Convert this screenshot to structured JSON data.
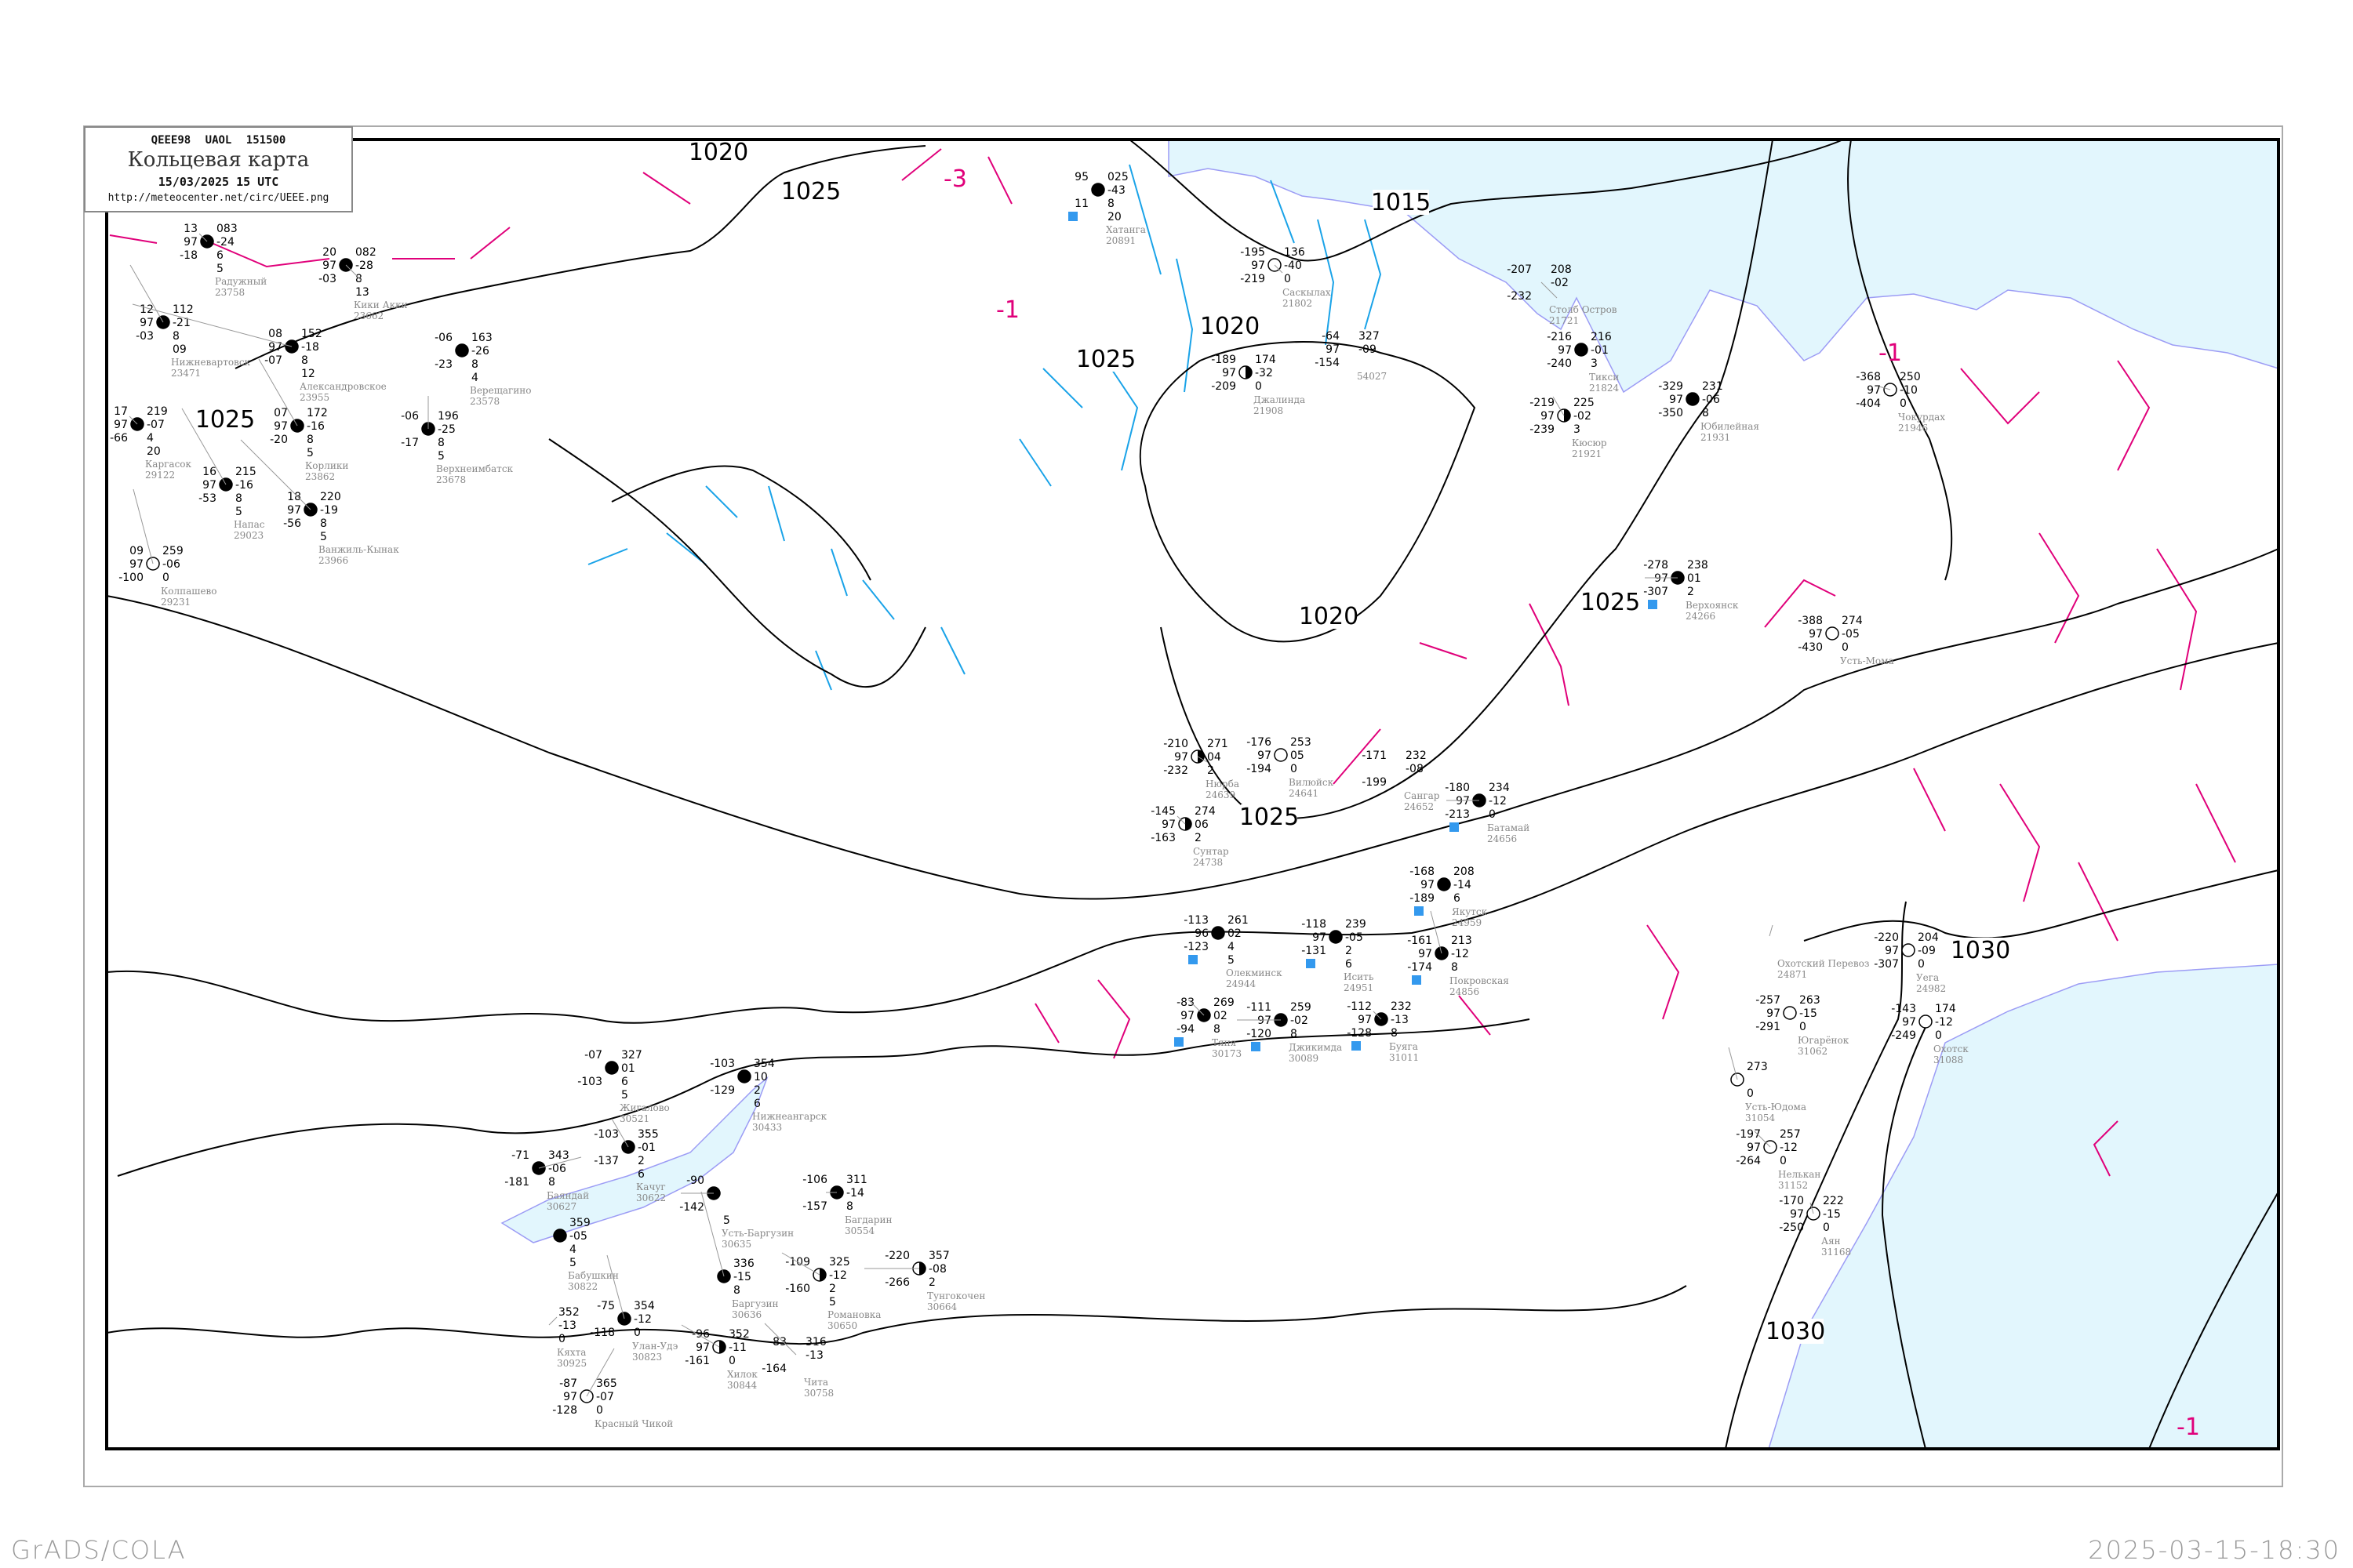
{
  "header": {
    "code_line": "QEEE98  UAOL  151500",
    "title": "Кольцевая карта",
    "datetime": "15/03/2025 15 UTC",
    "url": "http://meteocenter.net/circ/UEEE.png"
  },
  "footer": {
    "left": "GrADS/COLA",
    "right": "2025-03-15-18:30"
  },
  "colors": {
    "isobar": "#000000",
    "isotherm": "#e0007a",
    "cold_isotherm": "#1aa3e8",
    "water": "#e2f6fd",
    "coastline": "#9c9cf5",
    "precip_marker": "#3399ee",
    "station_name": "#888888"
  },
  "isobar_labels": [
    "1020",
    "1025",
    "1015",
    "1020",
    "1025",
    "1025",
    "1020",
    "1025",
    "1025",
    "1030",
    "1030"
  ],
  "isotherm_labels": [
    "-3",
    "-1",
    "-1",
    "-1"
  ],
  "stations": [
    {
      "name": "Хатанга",
      "id": "20891",
      "tl": "95",
      "ml": "",
      "bl": "11",
      "tr": "025",
      "mr": "-43",
      "br": "8",
      "bb": "20",
      "cover": "full",
      "precip": true
    },
    {
      "name": "Саскылах",
      "id": "21802",
      "tl": "-195",
      "ml": "97",
      "bl": "-219",
      "tr": "136",
      "mr": "-40",
      "br": "0",
      "bb": "",
      "cover": "empty",
      "precip": false
    },
    {
      "name": "Джалинда",
      "id": "21908",
      "tl": "-189",
      "ml": "97",
      "bl": "-209",
      "tr": "174",
      "mr": "-32",
      "br": "0",
      "bb": "",
      "cover": "half",
      "precip": false
    },
    {
      "name": "",
      "id": "54027",
      "tl": "-64",
      "ml": "97",
      "bl": "-154",
      "tr": "327",
      "mr": "-09",
      "br": "",
      "bb": "",
      "cover": "none",
      "precip": false
    },
    {
      "name": "Радужный",
      "id": "23758",
      "tl": "13",
      "ml": "97",
      "bl": "-18",
      "tr": "083",
      "mr": "-24",
      "br": "6",
      "bb": "5",
      "cover": "full",
      "precip": false
    },
    {
      "name": "Нижневартовск",
      "id": "23471",
      "tl": "12",
      "ml": "97",
      "bl": "-03",
      "tr": "112",
      "mr": "-21",
      "br": "8",
      "bb": "09",
      "cover": "full",
      "precip": false
    },
    {
      "name": "Александровское",
      "id": "23955",
      "tl": "08",
      "ml": "97",
      "bl": "-07",
      "tr": "152",
      "mr": "-18",
      "br": "8",
      "bb": "12",
      "cover": "full",
      "precip": false
    },
    {
      "name": "Корлики",
      "id": "23862",
      "tl": "07",
      "ml": "97",
      "bl": "-20",
      "tr": "172",
      "mr": "-16",
      "br": "8",
      "bb": "5",
      "cover": "full",
      "precip": false
    },
    {
      "name": "Каргасок",
      "id": "29122",
      "tl": "17",
      "ml": "97",
      "bl": "-66",
      "tr": "219",
      "mr": "-07",
      "br": "4",
      "bb": "20",
      "cover": "full",
      "precip": false
    },
    {
      "name": "Напас",
      "id": "29023",
      "tl": "16",
      "ml": "97",
      "bl": "-53",
      "tr": "215",
      "mr": "-16",
      "br": "8",
      "bb": "5",
      "cover": "full",
      "precip": false
    },
    {
      "name": "Ванжиль-Кынак",
      "id": "23966",
      "tl": "18",
      "ml": "97",
      "bl": "-56",
      "tr": "220",
      "mr": "-19",
      "br": "8",
      "bb": "5",
      "cover": "full",
      "precip": false
    },
    {
      "name": "Колпашево",
      "id": "29231",
      "tl": "09",
      "ml": "97",
      "bl": "-100",
      "tr": "259",
      "mr": "-06",
      "br": "0",
      "bb": "",
      "cover": "empty",
      "precip": false
    },
    {
      "name": "Кики Акки",
      "id": "23662",
      "tl": "20",
      "ml": "97",
      "bl": "-03",
      "tr": "082",
      "mr": "-28",
      "br": "8",
      "bb": "13",
      "cover": "full",
      "precip": false
    },
    {
      "name": "Верещагино",
      "id": "23578",
      "tl": "-06",
      "ml": "",
      "bl": "-23",
      "tr": "163",
      "mr": "-26",
      "br": "8",
      "bb": "4",
      "cover": "full",
      "precip": false
    },
    {
      "name": "Верхнеимбатск",
      "id": "23678",
      "tl": "-06",
      "ml": "",
      "bl": "-17",
      "tr": "196",
      "mr": "-25",
      "br": "8",
      "bb": "5",
      "cover": "full",
      "precip": false
    },
    {
      "name": "Тикси",
      "id": "21824",
      "tl": "-216",
      "ml": "97",
      "bl": "-240",
      "tr": "216",
      "mr": "-01",
      "br": "3",
      "bb": "",
      "cover": "full",
      "precip": false
    },
    {
      "name": "Кюсюр",
      "id": "21921",
      "tl": "-219",
      "ml": "97",
      "bl": "-239",
      "tr": "225",
      "mr": "-02",
      "br": "3",
      "bb": "",
      "cover": "half",
      "precip": false
    },
    {
      "name": "Юбилейная",
      "id": "21931",
      "tl": "-329",
      "ml": "97",
      "bl": "-350",
      "tr": "231",
      "mr": "-06",
      "br": "8",
      "bb": "",
      "cover": "full",
      "precip": false
    },
    {
      "name": "Чокурдах",
      "id": "21946",
      "tl": "-368",
      "ml": "97",
      "bl": "-404",
      "tr": "250",
      "mr": "-10",
      "br": "0",
      "bb": "",
      "cover": "empty",
      "precip": false
    },
    {
      "name": "Верхоянск",
      "id": "24266",
      "tl": "-278",
      "ml": "97",
      "bl": "-307",
      "tr": "238",
      "mr": "01",
      "br": "2",
      "bb": "",
      "cover": "full",
      "precip": true
    },
    {
      "name": "Усть-Мома",
      "id": "",
      "tl": "-388",
      "ml": "97",
      "bl": "-430",
      "tr": "274",
      "mr": "-05",
      "br": "0",
      "bb": "",
      "cover": "empty",
      "precip": false
    },
    {
      "name": "Столб Остров",
      "id": "21721",
      "tl": "-207",
      "ml": "",
      "bl": "-232",
      "tr": "208",
      "mr": "-02",
      "br": "",
      "bb": "",
      "cover": "none",
      "precip": false
    },
    {
      "name": "Нюрба",
      "id": "24639",
      "tl": "-210",
      "ml": "97",
      "bl": "-232",
      "tr": "271",
      "mr": "04",
      "br": "2",
      "bb": "",
      "cover": "half",
      "precip": false
    },
    {
      "name": "Вилюйск",
      "id": "24641",
      "tl": "-176",
      "ml": "97",
      "bl": "-194",
      "tr": "253",
      "mr": "05",
      "br": "0",
      "bb": "",
      "cover": "empty",
      "precip": false
    },
    {
      "name": "Сунтар",
      "id": "24738",
      "tl": "-145",
      "ml": "97",
      "bl": "-163",
      "tr": "274",
      "mr": "06",
      "br": "2",
      "bb": "",
      "cover": "half",
      "precip": false
    },
    {
      "name": "Сангар",
      "id": "24652",
      "tl": "-171",
      "ml": "",
      "bl": "-199",
      "tr": "232",
      "mr": "-08",
      "br": "",
      "bb": "",
      "cover": "none",
      "precip": false
    },
    {
      "name": "Батамай",
      "id": "24656",
      "tl": "-180",
      "ml": "97",
      "bl": "-213",
      "tr": "234",
      "mr": "-12",
      "br": "0",
      "bb": "",
      "cover": "full",
      "precip": true
    },
    {
      "name": "Якутск",
      "id": "24959",
      "tl": "-168",
      "ml": "97",
      "bl": "-189",
      "tr": "208",
      "mr": "-14",
      "br": "6",
      "bb": "",
      "cover": "full",
      "precip": true
    },
    {
      "name": "Покровская",
      "id": "24856",
      "tl": "-161",
      "ml": "97",
      "bl": "-174",
      "tr": "213",
      "mr": "-12",
      "br": "8",
      "bb": "",
      "cover": "full",
      "precip": true
    },
    {
      "name": "Олекминск",
      "id": "24944",
      "tl": "-113",
      "ml": "96",
      "bl": "-123",
      "tr": "261",
      "mr": "02",
      "br": "4",
      "bb": "5",
      "cover": "full",
      "precip": true
    },
    {
      "name": "Исить",
      "id": "24951",
      "tl": "-118",
      "ml": "97",
      "bl": "-131",
      "tr": "239",
      "mr": "-05",
      "br": "2",
      "bb": "6",
      "cover": "full",
      "precip": true
    },
    {
      "name": "Тяня",
      "id": "30173",
      "tl": "-83",
      "ml": "97",
      "bl": "-94",
      "tr": "269",
      "mr": "02",
      "br": "8",
      "bb": "",
      "cover": "full",
      "precip": true
    },
    {
      "name": "Джикимда",
      "id": "30089",
      "tl": "-111",
      "ml": "97",
      "bl": "-120",
      "tr": "259",
      "mr": "-02",
      "br": "8",
      "bb": "",
      "cover": "full",
      "precip": true
    },
    {
      "name": "Буяга",
      "id": "31011",
      "tl": "-112",
      "ml": "97",
      "bl": "-128",
      "tr": "232",
      "mr": "-13",
      "br": "8",
      "bb": "",
      "cover": "full",
      "precip": true
    },
    {
      "name": "Жигалово",
      "id": "30521",
      "tl": "-07",
      "ml": "",
      "bl": "-103",
      "tr": "327",
      "mr": "01",
      "br": "6",
      "bb": "5",
      "cover": "full",
      "precip": false
    },
    {
      "name": "Нижнеангарск",
      "id": "30433",
      "tl": "-103",
      "ml": "",
      "bl": "-129",
      "tr": "354",
      "mr": "10",
      "br": "2",
      "bb": "6",
      "cover": "full",
      "precip": false
    },
    {
      "name": "Качуг",
      "id": "30622",
      "tl": "-103",
      "ml": "",
      "bl": "-137",
      "tr": "355",
      "mr": "-01",
      "br": "2",
      "bb": "6",
      "cover": "full",
      "precip": false
    },
    {
      "name": "Баяндай",
      "id": "30627",
      "tl": "-71",
      "ml": "",
      "bl": "-181",
      "tr": "343",
      "mr": "-06",
      "br": "8",
      "bb": "",
      "cover": "full",
      "precip": false
    },
    {
      "name": "Усть-Баргузин",
      "id": "30635",
      "tl": "-90",
      "ml": "",
      "bl": "-142",
      "tr": "",
      "mr": "",
      "br": "",
      "bb": "5",
      "cover": "full",
      "precip": false
    },
    {
      "name": "Баргузин",
      "id": "30636",
      "tl": "",
      "ml": "",
      "bl": "",
      "tr": "336",
      "mr": "-15",
      "br": "8",
      "bb": "",
      "cover": "full",
      "precip": false
    },
    {
      "name": "Багдарин",
      "id": "30554",
      "tl": "-106",
      "ml": "",
      "bl": "-157",
      "tr": "311",
      "mr": "-14",
      "br": "8",
      "bb": "",
      "cover": "full",
      "precip": false
    },
    {
      "name": "Бабушкин",
      "id": "30822",
      "tl": "",
      "ml": "",
      "bl": "",
      "tr": "359",
      "mr": "-05",
      "br": "4",
      "bb": "5",
      "cover": "full",
      "precip": false
    },
    {
      "name": "Улан-Удэ",
      "id": "30823",
      "tl": "-75",
      "ml": "",
      "bl": "-118",
      "tr": "354",
      "mr": "-12",
      "br": "0",
      "bb": "",
      "cover": "full",
      "precip": false
    },
    {
      "name": "Романовка",
      "id": "30650",
      "tl": "-109",
      "ml": "",
      "bl": "-160",
      "tr": "325",
      "mr": "-12",
      "br": "2",
      "bb": "5",
      "cover": "half",
      "precip": false
    },
    {
      "name": "Тунгокочен",
      "id": "30664",
      "tl": "-220",
      "ml": "",
      "bl": "-266",
      "tr": "357",
      "mr": "-08",
      "br": "2",
      "bb": "",
      "cover": "half",
      "precip": false
    },
    {
      "name": "Хилок",
      "id": "30844",
      "tl": "-96",
      "ml": "97",
      "bl": "-161",
      "tr": "352",
      "mr": "-11",
      "br": "0",
      "bb": "",
      "cover": "half",
      "precip": false
    },
    {
      "name": "Чита",
      "id": "30758",
      "tl": "-83",
      "ml": "",
      "bl": "-164",
      "tr": "316",
      "mr": "-13",
      "br": "",
      "bb": "",
      "cover": "none",
      "precip": false
    },
    {
      "name": "Кяхта",
      "id": "30925",
      "tl": "",
      "ml": "",
      "bl": "",
      "tr": "352",
      "mr": "-13",
      "br": "0",
      "bb": "",
      "cover": "none",
      "precip": false
    },
    {
      "name": "Красный Чикой",
      "id": "",
      "tl": "-87",
      "ml": "97",
      "bl": "-128",
      "tr": "365",
      "mr": "-07",
      "br": "0",
      "bb": "",
      "cover": "empty",
      "precip": false
    },
    {
      "name": "Уега",
      "id": "24982",
      "tl": "-220",
      "ml": "97",
      "bl": "-307",
      "tr": "204",
      "mr": "-09",
      "br": "0",
      "bb": "",
      "cover": "empty",
      "precip": false
    },
    {
      "name": "Охотск",
      "id": "31088",
      "tl": "-143",
      "ml": "97",
      "bl": "-249",
      "tr": "174",
      "mr": "-12",
      "br": "0",
      "bb": "",
      "cover": "empty",
      "precip": false
    },
    {
      "name": "Югарёнок",
      "id": "31062",
      "tl": "-257",
      "ml": "97",
      "bl": "-291",
      "tr": "263",
      "mr": "-15",
      "br": "0",
      "bb": "",
      "cover": "empty",
      "precip": false
    },
    {
      "name": "Усть-Юдома",
      "id": "31054",
      "tl": "",
      "ml": "",
      "bl": "",
      "tr": "273",
      "mr": "",
      "br": "0",
      "bb": "",
      "cover": "empty",
      "precip": false
    },
    {
      "name": "Нелькан",
      "id": "31152",
      "tl": "-197",
      "ml": "97",
      "bl": "-264",
      "tr": "257",
      "mr": "-12",
      "br": "0",
      "bb": "",
      "cover": "empty",
      "precip": false
    },
    {
      "name": "Аян",
      "id": "31168",
      "tl": "-170",
      "ml": "97",
      "bl": "-250",
      "tr": "222",
      "mr": "-15",
      "br": "0",
      "bb": "",
      "cover": "empty",
      "precip": false
    },
    {
      "name": "Охотский Перевоз",
      "id": "24871",
      "tl": "",
      "ml": "",
      "bl": "",
      "tr": "",
      "mr": "",
      "br": "",
      "bb": "",
      "cover": "none",
      "precip": false
    }
  ]
}
